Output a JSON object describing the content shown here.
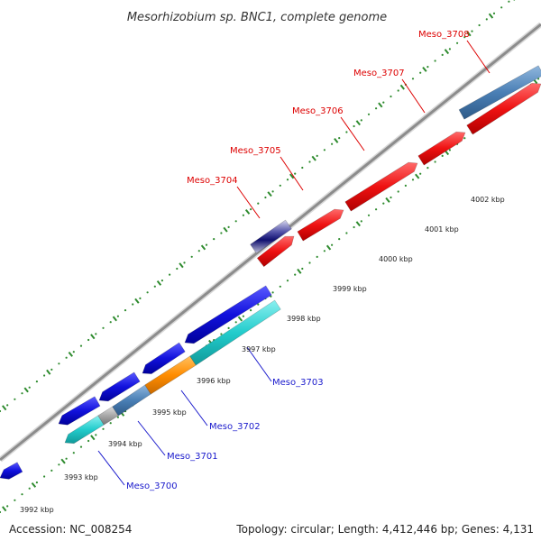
{
  "title": "Mesorhizobium sp. BNC1, complete genome",
  "footer": {
    "accession": "Accession: NC_008254",
    "summary": "Topology: circular; Length: 4,412,446 bp; Genes: 4,131"
  },
  "scale_labels": [
    "3992 kbp",
    "3993 kbp",
    "3994 kbp",
    "3995 kbp",
    "3996 kbp",
    "3997 kbp",
    "3998 kbp",
    "3999 kbp",
    "4000 kbp",
    "4001 kbp",
    "4002 kbp"
  ],
  "colors": {
    "backbone": "#8c8c8c",
    "dots": "#2e8b2e",
    "forward_gene": "#ee1111",
    "forward_label": "#dd0000",
    "reverse_label": "#1a1acc",
    "blue": "#1111dd",
    "cyan": "#22cccc",
    "orange": "#ff8c00",
    "steel": "#4a7fb5",
    "grey": "#999999",
    "navy": "#1a1a70"
  },
  "forward_genes": [
    {
      "label": "Meso_3704",
      "color": "navy"
    },
    {
      "label": "Meso_3705",
      "color": "forward_gene"
    },
    {
      "label": "Meso_3706",
      "color": "forward_gene"
    },
    {
      "label": "Meso_3707",
      "color": "forward_gene"
    },
    {
      "label": "Meso_3708",
      "color": "steel"
    }
  ],
  "reverse_genes": [
    {
      "label": "Meso_3700",
      "color": "cyan"
    },
    {
      "label": "Meso_3701",
      "color": "steel"
    },
    {
      "label": "Meso_3702",
      "color": "orange"
    },
    {
      "label": "Meso_3703",
      "color": "cyan"
    }
  ]
}
